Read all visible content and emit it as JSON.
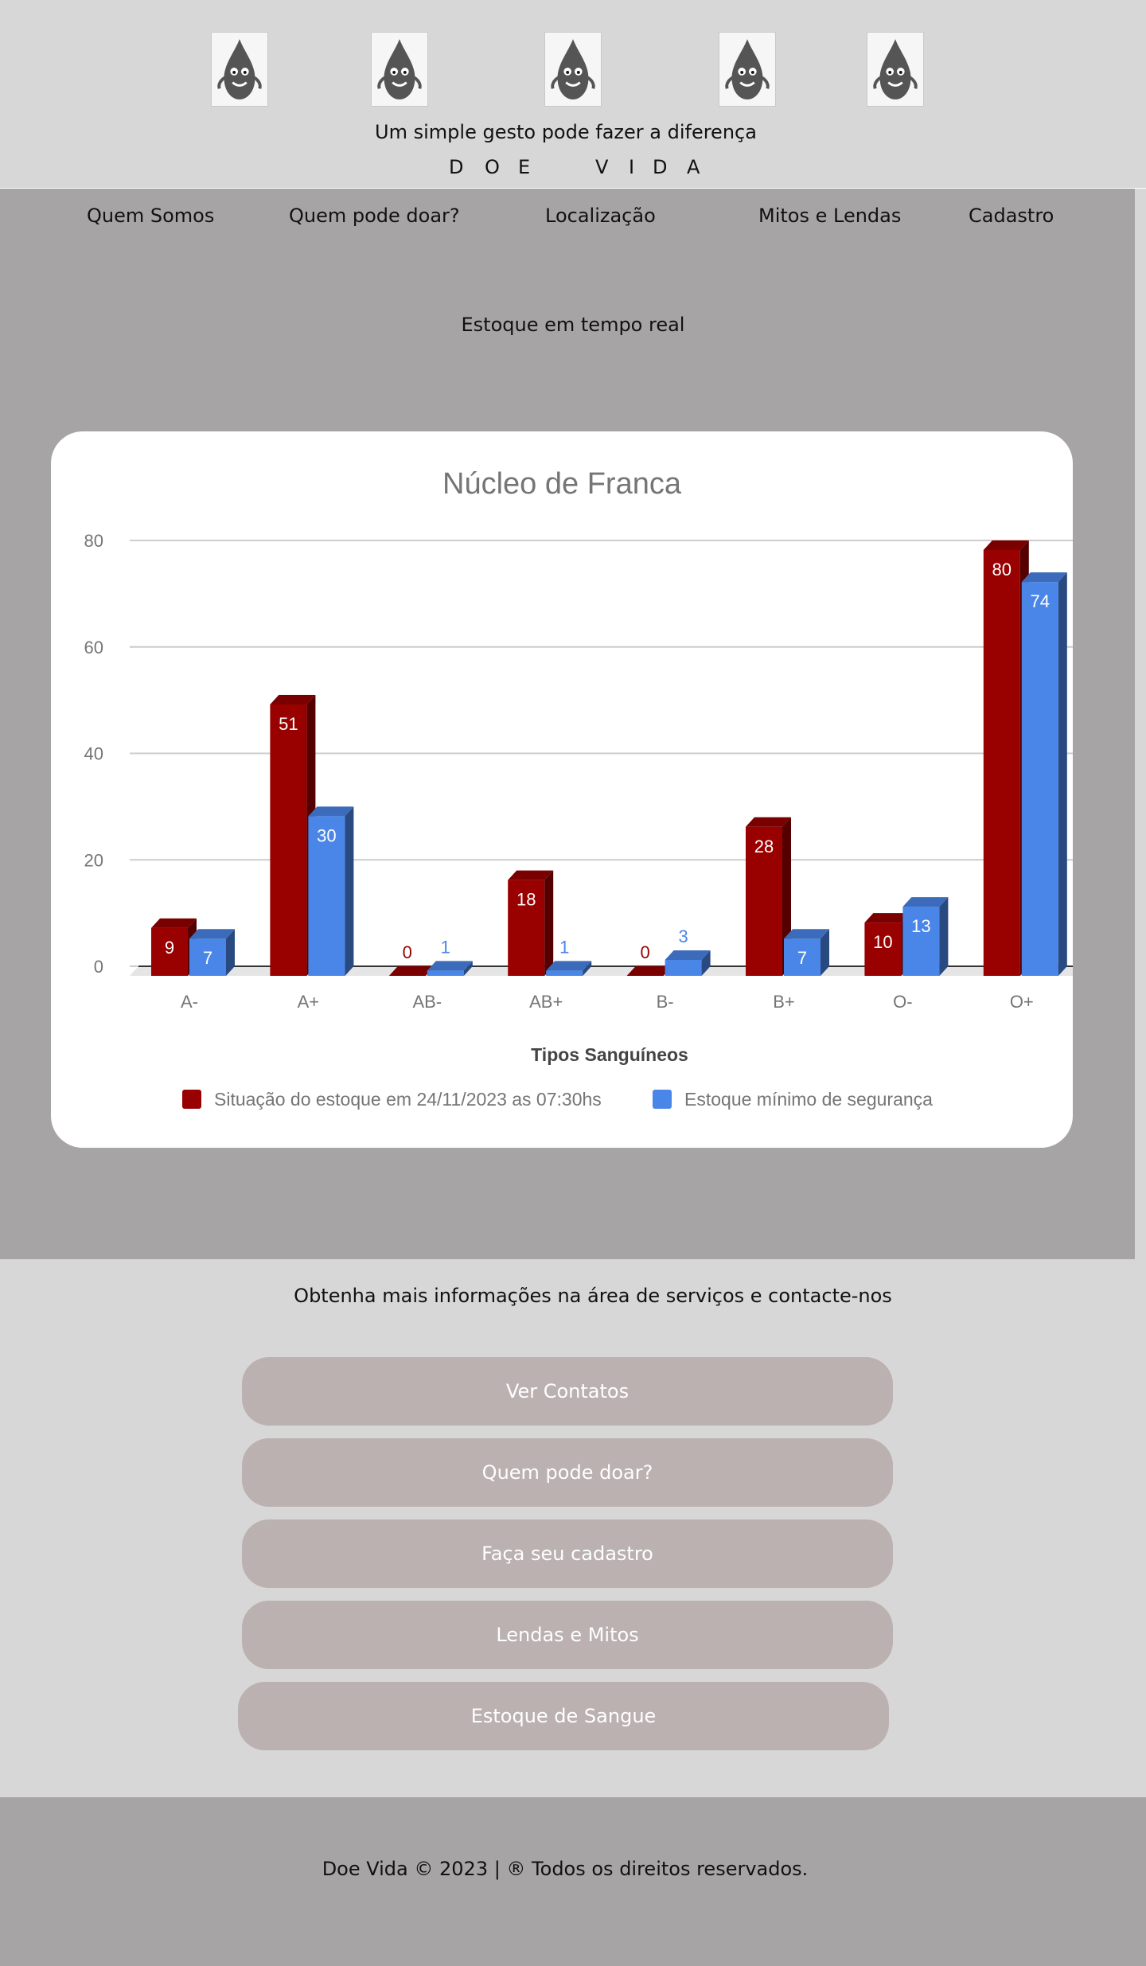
{
  "header": {
    "tagline": "Um simple gesto pode fazer a diferença",
    "brand": [
      "D",
      "O",
      "E",
      "V",
      "I",
      "D",
      "A"
    ]
  },
  "nav": {
    "items": [
      "Quem Somos",
      "Quem pode doar?",
      "Localização",
      "Mitos e Lendas",
      "Cadastro"
    ]
  },
  "section": {
    "title": "Estoque em tempo real"
  },
  "chart_data": {
    "type": "bar",
    "title": "Núcleo de Franca",
    "xlabel": "Tipos Sanguíneos",
    "ylabel": "",
    "ylim": [
      0,
      80
    ],
    "yticks": [
      0,
      20,
      40,
      60,
      80
    ],
    "categories": [
      "A-",
      "A+",
      "AB-",
      "AB+",
      "B-",
      "B+",
      "O-",
      "O+"
    ],
    "series": [
      {
        "name": "Situação do estoque em 24/11/2023 as 07:30hs",
        "color": "#990000",
        "values": [
          9,
          51,
          0,
          18,
          0,
          28,
          10,
          80
        ]
      },
      {
        "name": "Estoque mínimo de segurança",
        "color": "#4a86e8",
        "values": [
          7,
          30,
          1,
          1,
          3,
          7,
          13,
          74
        ]
      }
    ],
    "grid": true,
    "legend": "bottom",
    "style": "3d"
  },
  "info": {
    "text": "Obtenha mais informações na área de serviços e contacte-nos"
  },
  "buttons": [
    "Ver Contatos",
    "Quem pode doar?",
    "Faça seu cadastro",
    "Lendas e Mitos",
    "Estoque de Sangue"
  ],
  "footer": {
    "text": "Doe Vida © 2023 | ® Todos os direitos reservados."
  },
  "colors": {
    "background": "#d7d7d7",
    "main_section": "#a7a4a5",
    "pill": "#bbb1b1",
    "stock_bar": "#990000",
    "minimum_bar": "#4a86e8"
  }
}
